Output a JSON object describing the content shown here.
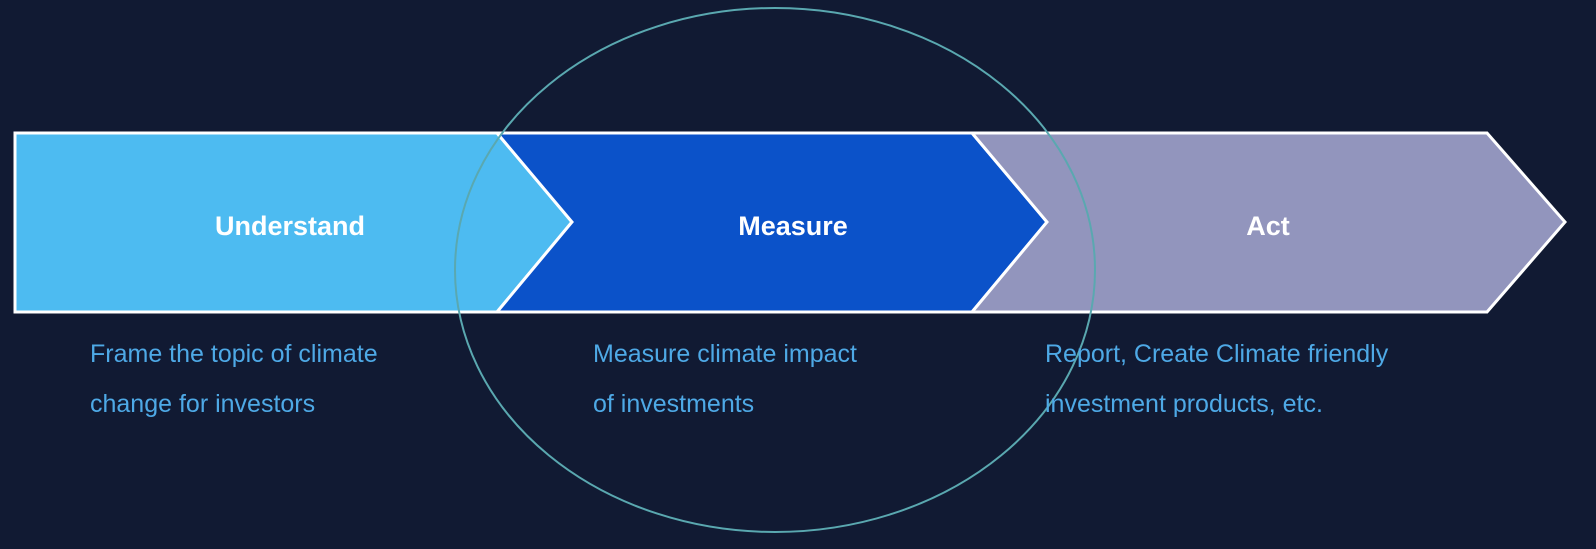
{
  "steps": [
    {
      "label": "Understand",
      "description": [
        "Frame the topic of climate",
        "change for investors"
      ]
    },
    {
      "label": "Measure",
      "description": [
        "Measure climate impact",
        "of investments"
      ]
    },
    {
      "label": "Act",
      "description": [
        "Report, Create Climate friendly",
        "investment products, etc."
      ]
    }
  ]
}
